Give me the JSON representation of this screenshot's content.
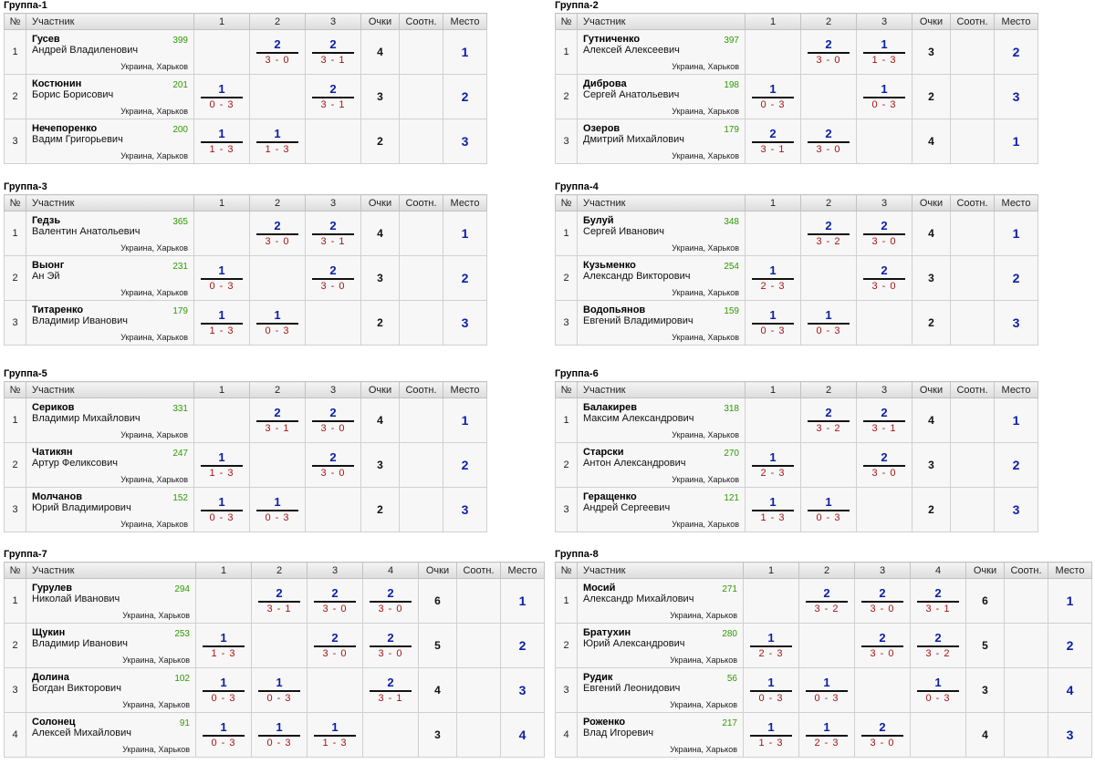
{
  "headers": {
    "no": "№",
    "player": "Участник",
    "score": "Очки",
    "ratio": "Соотн.",
    "place": "Место"
  },
  "city": "Украина, Харьков",
  "groups": [
    {
      "title": "Группа-1",
      "cols": [
        "1",
        "2",
        "3"
      ],
      "rows": [
        {
          "no": "1",
          "name": "Гусев",
          "full": "Андрей Владиленович",
          "rating": "399",
          "results": [
            null,
            {
              "p": "2",
              "s": "3 - 0"
            },
            {
              "p": "2",
              "s": "3 - 1"
            }
          ],
          "score": "4",
          "ratio": "",
          "place": "1"
        },
        {
          "no": "2",
          "name": "Костюнин",
          "full": "Борис Борисович",
          "rating": "201",
          "results": [
            {
              "p": "1",
              "s": "0 - 3"
            },
            null,
            {
              "p": "2",
              "s": "3 - 1"
            }
          ],
          "score": "3",
          "ratio": "",
          "place": "2"
        },
        {
          "no": "3",
          "name": "Нечепоренко",
          "full": "Вадим Григорьевич",
          "rating": "200",
          "results": [
            {
              "p": "1",
              "s": "1 - 3"
            },
            {
              "p": "1",
              "s": "1 - 3"
            },
            null
          ],
          "score": "2",
          "ratio": "",
          "place": "3"
        }
      ]
    },
    {
      "title": "Группа-2",
      "cols": [
        "1",
        "2",
        "3"
      ],
      "rows": [
        {
          "no": "1",
          "name": "Гутниченко",
          "full": "Алексей Алексеевич",
          "rating": "397",
          "results": [
            null,
            {
              "p": "2",
              "s": "3 - 0"
            },
            {
              "p": "1",
              "s": "1 - 3"
            }
          ],
          "score": "3",
          "ratio": "",
          "place": "2"
        },
        {
          "no": "2",
          "name": "Диброва",
          "full": "Сергей Анатольевич",
          "rating": "198",
          "results": [
            {
              "p": "1",
              "s": "0 - 3"
            },
            null,
            {
              "p": "1",
              "s": "0 - 3"
            }
          ],
          "score": "2",
          "ratio": "",
          "place": "3"
        },
        {
          "no": "3",
          "name": "Озеров",
          "full": "Дмитрий Михайлович",
          "rating": "179",
          "results": [
            {
              "p": "2",
              "s": "3 - 1"
            },
            {
              "p": "2",
              "s": "3 - 0"
            },
            null
          ],
          "score": "4",
          "ratio": "",
          "place": "1"
        }
      ]
    },
    {
      "title": "Группа-3",
      "cols": [
        "1",
        "2",
        "3"
      ],
      "rows": [
        {
          "no": "1",
          "name": "Гедзь",
          "full": "Валентин Анатольевич",
          "rating": "365",
          "results": [
            null,
            {
              "p": "2",
              "s": "3 - 0"
            },
            {
              "p": "2",
              "s": "3 - 1"
            }
          ],
          "score": "4",
          "ratio": "",
          "place": "1"
        },
        {
          "no": "2",
          "name": "Выонг",
          "full": "Ан Эй",
          "rating": "231",
          "results": [
            {
              "p": "1",
              "s": "0 - 3"
            },
            null,
            {
              "p": "2",
              "s": "3 - 0"
            }
          ],
          "score": "3",
          "ratio": "",
          "place": "2"
        },
        {
          "no": "3",
          "name": "Титаренко",
          "full": "Владимир Иванович",
          "rating": "179",
          "results": [
            {
              "p": "1",
              "s": "1 - 3"
            },
            {
              "p": "1",
              "s": "0 - 3"
            },
            null
          ],
          "score": "2",
          "ratio": "",
          "place": "3"
        }
      ]
    },
    {
      "title": "Группа-4",
      "cols": [
        "1",
        "2",
        "3"
      ],
      "rows": [
        {
          "no": "1",
          "name": "Булуй",
          "full": "Сергей Иванович",
          "rating": "348",
          "results": [
            null,
            {
              "p": "2",
              "s": "3 - 2"
            },
            {
              "p": "2",
              "s": "3 - 0"
            }
          ],
          "score": "4",
          "ratio": "",
          "place": "1"
        },
        {
          "no": "2",
          "name": "Кузьменко",
          "full": "Александр Викторович",
          "rating": "254",
          "results": [
            {
              "p": "1",
              "s": "2 - 3"
            },
            null,
            {
              "p": "2",
              "s": "3 - 0"
            }
          ],
          "score": "3",
          "ratio": "",
          "place": "2"
        },
        {
          "no": "3",
          "name": "Водопьянов",
          "full": "Евгений Владимирович",
          "rating": "159",
          "results": [
            {
              "p": "1",
              "s": "0 - 3"
            },
            {
              "p": "1",
              "s": "0 - 3"
            },
            null
          ],
          "score": "2",
          "ratio": "",
          "place": "3"
        }
      ]
    },
    {
      "title": "Группа-5",
      "cols": [
        "1",
        "2",
        "3"
      ],
      "rows": [
        {
          "no": "1",
          "name": "Сериков",
          "full": "Владимир Михайлович",
          "rating": "331",
          "results": [
            null,
            {
              "p": "2",
              "s": "3 - 1"
            },
            {
              "p": "2",
              "s": "3 - 0"
            }
          ],
          "score": "4",
          "ratio": "",
          "place": "1"
        },
        {
          "no": "2",
          "name": "Чатикян",
          "full": "Артур Феликсович",
          "rating": "247",
          "results": [
            {
              "p": "1",
              "s": "1 - 3"
            },
            null,
            {
              "p": "2",
              "s": "3 - 0"
            }
          ],
          "score": "3",
          "ratio": "",
          "place": "2"
        },
        {
          "no": "3",
          "name": "Молчанов",
          "full": "Юрий Владимирович",
          "rating": "152",
          "results": [
            {
              "p": "1",
              "s": "0 - 3"
            },
            {
              "p": "1",
              "s": "0 - 3"
            },
            null
          ],
          "score": "2",
          "ratio": "",
          "place": "3"
        }
      ]
    },
    {
      "title": "Группа-6",
      "cols": [
        "1",
        "2",
        "3"
      ],
      "rows": [
        {
          "no": "1",
          "name": "Балакирев",
          "full": "Максим Александрович",
          "rating": "318",
          "results": [
            null,
            {
              "p": "2",
              "s": "3 - 2"
            },
            {
              "p": "2",
              "s": "3 - 1"
            }
          ],
          "score": "4",
          "ratio": "",
          "place": "1"
        },
        {
          "no": "2",
          "name": "Старски",
          "full": "Антон Александрович",
          "rating": "270",
          "results": [
            {
              "p": "1",
              "s": "2 - 3"
            },
            null,
            {
              "p": "2",
              "s": "3 - 0"
            }
          ],
          "score": "3",
          "ratio": "",
          "place": "2"
        },
        {
          "no": "3",
          "name": "Геращенко",
          "full": "Андрей Сергеевич",
          "rating": "121",
          "results": [
            {
              "p": "1",
              "s": "1 - 3"
            },
            {
              "p": "1",
              "s": "0 - 3"
            },
            null
          ],
          "score": "2",
          "ratio": "",
          "place": "3"
        }
      ]
    },
    {
      "title": "Группа-7",
      "cols": [
        "1",
        "2",
        "3",
        "4"
      ],
      "rows": [
        {
          "no": "1",
          "name": "Гурулев",
          "full": "Николай Иванович",
          "rating": "294",
          "results": [
            null,
            {
              "p": "2",
              "s": "3 - 1"
            },
            {
              "p": "2",
              "s": "3 - 0"
            },
            {
              "p": "2",
              "s": "3 - 0"
            }
          ],
          "score": "6",
          "ratio": "",
          "place": "1"
        },
        {
          "no": "2",
          "name": "Щукин",
          "full": "Владимир Иванович",
          "rating": "253",
          "results": [
            {
              "p": "1",
              "s": "1 - 3"
            },
            null,
            {
              "p": "2",
              "s": "3 - 0"
            },
            {
              "p": "2",
              "s": "3 - 0"
            }
          ],
          "score": "5",
          "ratio": "",
          "place": "2"
        },
        {
          "no": "3",
          "name": "Долина",
          "full": "Богдан Викторович",
          "rating": "102",
          "results": [
            {
              "p": "1",
              "s": "0 - 3"
            },
            {
              "p": "1",
              "s": "0 - 3"
            },
            null,
            {
              "p": "2",
              "s": "3 - 1"
            }
          ],
          "score": "4",
          "ratio": "",
          "place": "3"
        },
        {
          "no": "4",
          "name": "Солонец",
          "full": "Алексей Михайлович",
          "rating": "91",
          "results": [
            {
              "p": "1",
              "s": "0 - 3"
            },
            {
              "p": "1",
              "s": "0 - 3"
            },
            {
              "p": "1",
              "s": "1 - 3"
            },
            null
          ],
          "score": "3",
          "ratio": "",
          "place": "4"
        }
      ]
    },
    {
      "title": "Группа-8",
      "cols": [
        "1",
        "2",
        "3",
        "4"
      ],
      "rows": [
        {
          "no": "1",
          "name": "Мосий",
          "full": "Александр Михайлович",
          "rating": "271",
          "results": [
            null,
            {
              "p": "2",
              "s": "3 - 2"
            },
            {
              "p": "2",
              "s": "3 - 0"
            },
            {
              "p": "2",
              "s": "3 - 1"
            }
          ],
          "score": "6",
          "ratio": "",
          "place": "1"
        },
        {
          "no": "2",
          "name": "Братухин",
          "full": "Юрий Александрович",
          "rating": "280",
          "results": [
            {
              "p": "1",
              "s": "2 - 3"
            },
            null,
            {
              "p": "2",
              "s": "3 - 0"
            },
            {
              "p": "2",
              "s": "3 - 2"
            }
          ],
          "score": "5",
          "ratio": "",
          "place": "2"
        },
        {
          "no": "3",
          "name": "Рудик",
          "full": "Евгений Леонидович",
          "rating": "56",
          "results": [
            {
              "p": "1",
              "s": "0 - 3"
            },
            {
              "p": "1",
              "s": "0 - 3"
            },
            null,
            {
              "p": "1",
              "s": "0 - 3"
            }
          ],
          "score": "3",
          "ratio": "",
          "place": "4"
        },
        {
          "no": "4",
          "name": "Роженко",
          "full": "Влад Игоревич",
          "rating": "217",
          "results": [
            {
              "p": "1",
              "s": "1 - 3"
            },
            {
              "p": "1",
              "s": "2 - 3"
            },
            {
              "p": "2",
              "s": "3 - 0"
            },
            null
          ],
          "score": "4",
          "ratio": "",
          "place": "3"
        }
      ]
    }
  ]
}
